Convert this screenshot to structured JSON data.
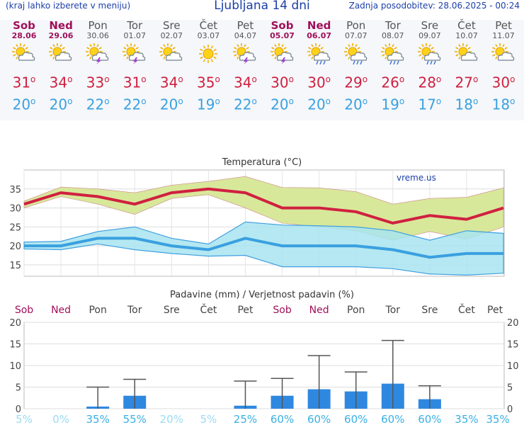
{
  "header": {
    "note": "(kraj lahko izberete v meniju)",
    "title": "Ljubljana 14 dni",
    "updated": "Zadnja posodobitev: 28.06.2025 - 00:24"
  },
  "degree_symbol": "o",
  "days": [
    {
      "name": "Sob",
      "date": "28.06",
      "weekend": true,
      "icon": "sun-cloud-icon",
      "tmax": "31",
      "tmin": "20"
    },
    {
      "name": "Ned",
      "date": "29.06",
      "weekend": true,
      "icon": "sun-cloud-icon",
      "tmax": "34",
      "tmin": "20"
    },
    {
      "name": "Pon",
      "date": "30.06",
      "weekend": false,
      "icon": "sun-cloud-storm-icon",
      "tmax": "33",
      "tmin": "22"
    },
    {
      "name": "Tor",
      "date": "01.07",
      "weekend": false,
      "icon": "sun-cloud-storm-icon",
      "tmax": "31",
      "tmin": "22"
    },
    {
      "name": "Sre",
      "date": "02.07",
      "weekend": false,
      "icon": "sun-cloud-icon",
      "tmax": "34",
      "tmin": "20"
    },
    {
      "name": "Čet",
      "date": "03.07",
      "weekend": false,
      "icon": "sun-icon",
      "tmax": "35",
      "tmin": "19"
    },
    {
      "name": "Pet",
      "date": "04.07",
      "weekend": false,
      "icon": "sun-cloud-storm-icon",
      "tmax": "34",
      "tmin": "22"
    },
    {
      "name": "Sob",
      "date": "05.07",
      "weekend": true,
      "icon": "sun-cloud-storm-icon",
      "tmax": "30",
      "tmin": "20"
    },
    {
      "name": "Ned",
      "date": "06.07",
      "weekend": true,
      "icon": "sun-cloud-rain-icon",
      "tmax": "30",
      "tmin": "20"
    },
    {
      "name": "Pon",
      "date": "07.07",
      "weekend": false,
      "icon": "sun-cloud-rain-icon",
      "tmax": "29",
      "tmin": "20"
    },
    {
      "name": "Tor",
      "date": "08.07",
      "weekend": false,
      "icon": "sun-cloud-rain-icon",
      "tmax": "26",
      "tmin": "19"
    },
    {
      "name": "Sre",
      "date": "09.07",
      "weekend": false,
      "icon": "sun-cloud-rain-icon",
      "tmax": "28",
      "tmin": "17"
    },
    {
      "name": "Čet",
      "date": "10.07",
      "weekend": false,
      "icon": "sun-cloud-icon",
      "tmax": "27",
      "tmin": "18"
    },
    {
      "name": "Pet",
      "date": "11.07",
      "weekend": false,
      "icon": "sun-cloud-icon",
      "tmax": "30",
      "tmin": "18"
    }
  ],
  "colors": {
    "weekend": "#a0105a",
    "tmax": "#d02040",
    "tmin": "#3aa0e0",
    "max_band": "#d8e89a",
    "min_band": "#a8e4f0",
    "overlap_band": "#8fd08a",
    "bar": "#2f88e0",
    "prob": "#8ad6f0",
    "whisker": "#555555"
  },
  "chart_data": [
    {
      "type": "line",
      "title": "Temperatura (°C)",
      "watermark": "vreme.us",
      "categories": [
        "Sob",
        "Ned",
        "Pon",
        "Tor",
        "Sre",
        "Čet",
        "Pet",
        "Sob",
        "Ned",
        "Pon",
        "Tor",
        "Sre",
        "Čet",
        "Pet"
      ],
      "ylim": [
        12,
        40
      ],
      "yticks": [
        15,
        20,
        25,
        30,
        35
      ],
      "grid": true,
      "series": [
        {
          "values": [
            31,
            34,
            33,
            31,
            34,
            35,
            34,
            30,
            30,
            29,
            26,
            28,
            27,
            30
          ]
        },
        {
          "values": [
            20,
            20,
            22,
            22,
            20,
            19,
            22,
            20,
            20,
            20,
            19,
            17,
            18,
            18
          ]
        }
      ],
      "bands": [
        {
          "low": [
            30,
            33,
            31,
            28.3,
            32.5,
            33.5,
            30,
            26,
            25,
            24,
            21.5,
            23.8,
            21.8,
            25
          ],
          "high": [
            31.8,
            35.5,
            35,
            34,
            36,
            37,
            38.3,
            35.4,
            35.3,
            34.3,
            31,
            32.5,
            32.8,
            35.3
          ]
        },
        {
          "low": [
            19.2,
            19,
            20.5,
            19,
            18,
            17.3,
            17.5,
            14.5,
            14.5,
            14.5,
            14,
            12.6,
            12.3,
            12.8
          ],
          "high": [
            21,
            21.2,
            23.8,
            25,
            22,
            20.5,
            26.3,
            25.5,
            25.3,
            25,
            24,
            21.5,
            24,
            23.3
          ]
        }
      ]
    },
    {
      "type": "bar",
      "title": "Padavine (mm) / Verjetnost padavin (%)",
      "categories": [
        "Sob",
        "Ned",
        "Pon",
        "Tor",
        "Sre",
        "Čet",
        "Pet",
        "Sob",
        "Ned",
        "Pon",
        "Tor",
        "Sre",
        "Čet",
        "Pet"
      ],
      "ylim": [
        0,
        20
      ],
      "yticks": [
        0,
        5,
        10,
        15,
        20
      ],
      "values": [
        0,
        0,
        0.5,
        3,
        0,
        0,
        0.7,
        3,
        4.5,
        4,
        5.8,
        2.2,
        0,
        0
      ],
      "upper": [
        0,
        0,
        5,
        6.8,
        0,
        0,
        6.4,
        7,
        12.3,
        8.5,
        15.8,
        5.3,
        0,
        0
      ],
      "probability": [
        "5%",
        "0%",
        "35%",
        "55%",
        "20%",
        "5%",
        "25%",
        "60%",
        "60%",
        "60%",
        "60%",
        "60%",
        "35%",
        "35%"
      ]
    }
  ]
}
